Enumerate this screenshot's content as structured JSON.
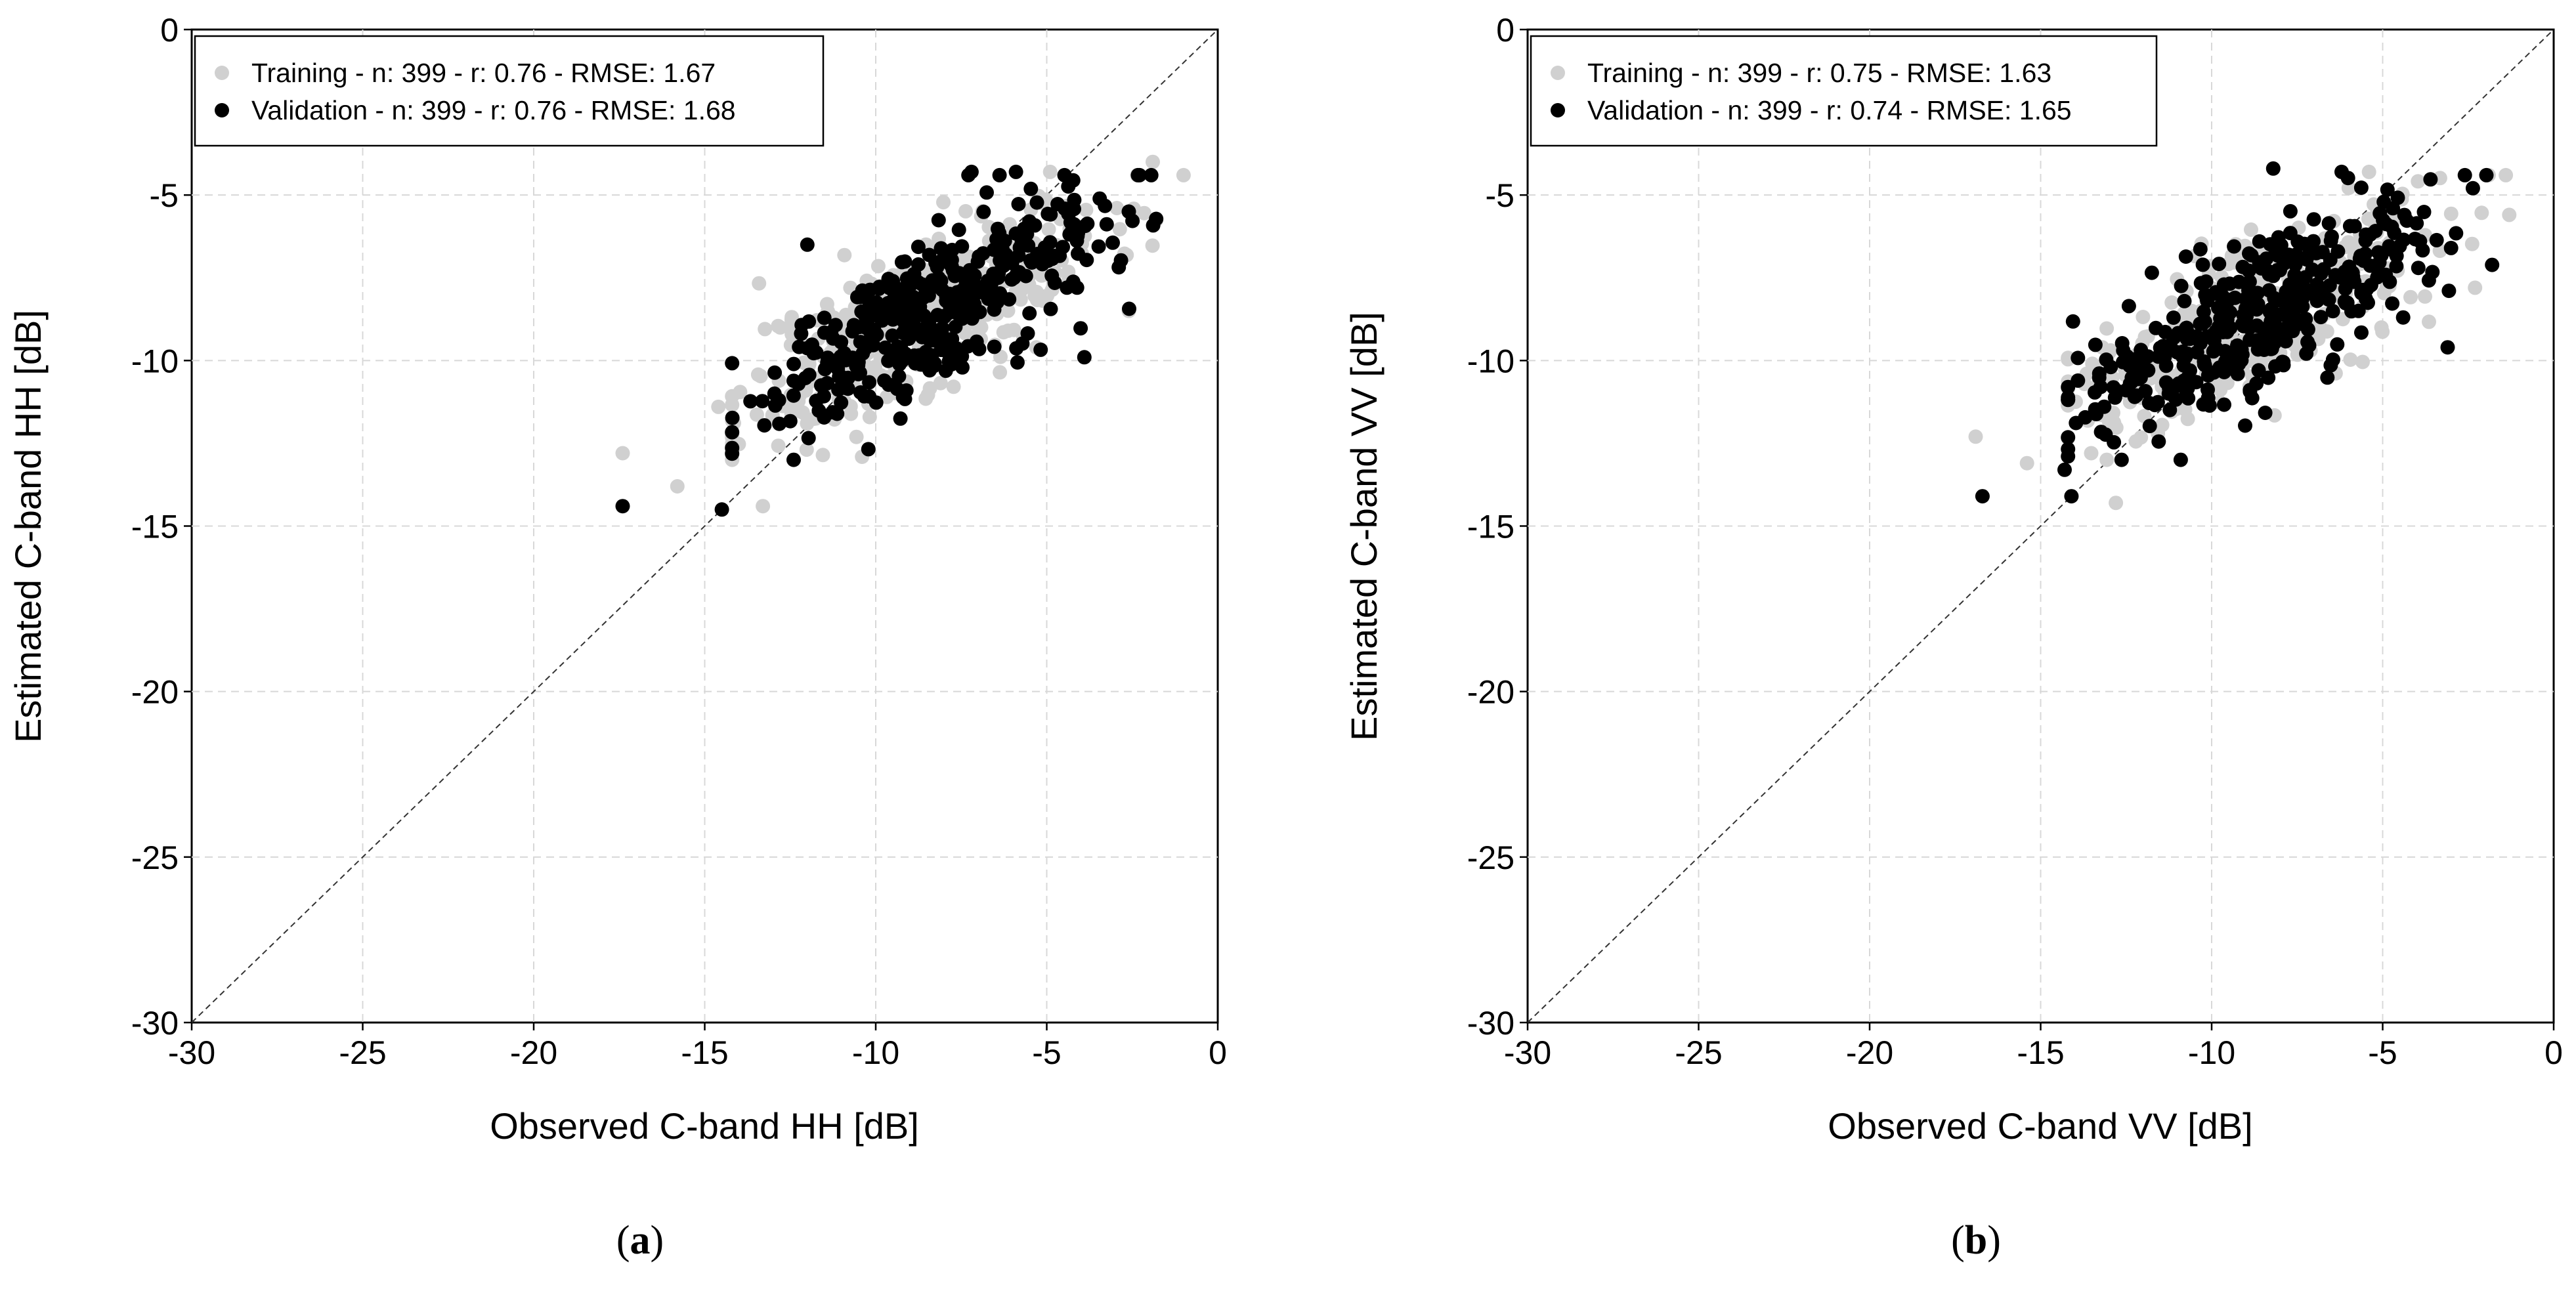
{
  "chart_data": [
    {
      "type": "scatter",
      "panel_label": "a",
      "xlabel": "Observed C-band HH [dB]",
      "ylabel": "Estimated C-band HH [dB]",
      "xlim": [
        -30,
        0
      ],
      "ylim": [
        -30,
        0
      ],
      "xticks": [
        "-30",
        "-25",
        "-20",
        "-15",
        "-10",
        "-5",
        "0"
      ],
      "yticks": [
        "0",
        "-5",
        "-10",
        "-15",
        "-20",
        "-25",
        "-30"
      ],
      "grid": true,
      "legend_position": "top-left",
      "reference_line": "1:1 dashed",
      "series": [
        {
          "name": "Training - n: 399 - r: 0.76 - RMSE: 1.67",
          "color": "#d0d0d0",
          "n": 399,
          "r": 0.76,
          "rmse": 1.67,
          "center": [
            -8.6,
            -8.6
          ],
          "spread": [
            2.7,
            1.75
          ],
          "corr": 0.76,
          "seed": 11,
          "extremes": [
            [
              -17.4,
              -12.8
            ],
            [
              -15.8,
              -13.8
            ],
            [
              -14.6,
              -11.4
            ],
            [
              -13.3,
              -14.4
            ],
            [
              -1.0,
              -4.4
            ],
            [
              -1.9,
              -4.0
            ],
            [
              -2.6,
              -8.5
            ],
            [
              -4.9,
              -4.3
            ]
          ]
        },
        {
          "name": "Validation - n: 399 - r: 0.76 - RMSE: 1.68",
          "color": "#000000",
          "n": 399,
          "r": 0.76,
          "rmse": 1.68,
          "center": [
            -8.5,
            -8.6
          ],
          "spread": [
            2.5,
            1.65
          ],
          "corr": 0.76,
          "seed": 29,
          "extremes": [
            [
              -17.4,
              -14.4
            ],
            [
              -14.5,
              -14.5
            ],
            [
              -12.4,
              -13.0
            ],
            [
              -3.9,
              -9.9
            ],
            [
              -2.6,
              -5.5
            ],
            [
              -5.9,
              -4.3
            ],
            [
              -7.2,
              -4.3
            ],
            [
              -12.0,
              -6.5
            ]
          ]
        }
      ]
    },
    {
      "type": "scatter",
      "panel_label": "b",
      "xlabel": "Observed C-band VV [dB]",
      "ylabel": "Estimated C-band VV [dB]",
      "xlim": [
        -30,
        0
      ],
      "ylim": [
        -30,
        0
      ],
      "xticks": [
        "-30",
        "-25",
        "-20",
        "-15",
        "-10",
        "-5",
        "0"
      ],
      "yticks": [
        "0",
        "-5",
        "-10",
        "-15",
        "-20",
        "-25",
        "-30"
      ],
      "grid": true,
      "legend_position": "top-left",
      "reference_line": "1:1 dashed",
      "series": [
        {
          "name": "Training - n: 399 - r: 0.75 - RMSE: 1.63",
          "color": "#d0d0d0",
          "n": 399,
          "r": 0.75,
          "rmse": 1.63,
          "center": [
            -8.9,
            -8.8
          ],
          "spread": [
            2.6,
            1.7
          ],
          "corr": 0.75,
          "seed": 41,
          "extremes": [
            [
              -16.9,
              -12.3
            ],
            [
              -15.4,
              -13.1
            ],
            [
              -12.8,
              -14.3
            ],
            [
              -1.9,
              -4.4
            ],
            [
              -1.4,
              -4.4
            ],
            [
              -1.3,
              -5.6
            ],
            [
              -2.3,
              -7.8
            ],
            [
              -5.4,
              -4.3
            ]
          ]
        },
        {
          "name": "Validation - n: 399 - r: 0.74 - RMSE: 1.65",
          "color": "#000000",
          "n": 399,
          "r": 0.74,
          "rmse": 1.65,
          "center": [
            -8.9,
            -8.9
          ],
          "spread": [
            2.5,
            1.65
          ],
          "corr": 0.74,
          "seed": 67,
          "extremes": [
            [
              -16.7,
              -14.1
            ],
            [
              -14.1,
              -14.1
            ],
            [
              -14.3,
              -13.3
            ],
            [
              -8.2,
              -4.2
            ],
            [
              -6.2,
              -4.3
            ],
            [
              -3.1,
              -9.6
            ],
            [
              -3.0,
              -6.6
            ],
            [
              -4.7,
              -5.4
            ]
          ]
        }
      ]
    }
  ]
}
